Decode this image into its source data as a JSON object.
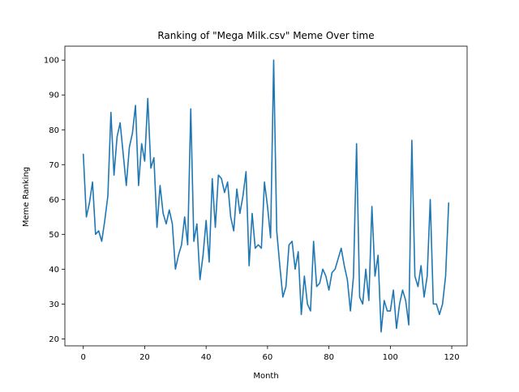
{
  "chart_data": {
    "type": "line",
    "title": "Ranking of \"Mega Milk.csv\" Meme Over time",
    "xlabel": "Month",
    "ylabel": "Meme Ranking",
    "xlim": [
      -6,
      125
    ],
    "ylim": [
      18,
      104
    ],
    "xticks": [
      0,
      20,
      40,
      60,
      80,
      100,
      120
    ],
    "yticks": [
      20,
      30,
      40,
      50,
      60,
      70,
      80,
      90,
      100
    ],
    "grid": false,
    "legend": "none",
    "line_color": "#1f77b4",
    "x": [
      0,
      1,
      2,
      3,
      4,
      5,
      6,
      7,
      8,
      9,
      10,
      11,
      12,
      13,
      14,
      15,
      16,
      17,
      18,
      19,
      20,
      21,
      22,
      23,
      24,
      25,
      26,
      27,
      28,
      29,
      30,
      31,
      32,
      33,
      34,
      35,
      36,
      37,
      38,
      39,
      40,
      41,
      42,
      43,
      44,
      45,
      46,
      47,
      48,
      49,
      50,
      51,
      52,
      53,
      54,
      55,
      56,
      57,
      58,
      59,
      60,
      61,
      62,
      63,
      64,
      65,
      66,
      67,
      68,
      69,
      70,
      71,
      72,
      73,
      74,
      75,
      76,
      77,
      78,
      79,
      80,
      81,
      82,
      83,
      84,
      85,
      86,
      87,
      88,
      89,
      90,
      91,
      92,
      93,
      94,
      95,
      96,
      97,
      98,
      99,
      100,
      101,
      102,
      103,
      104,
      105,
      106,
      107,
      108,
      109,
      110,
      111,
      112,
      113,
      114,
      115,
      116,
      117,
      118,
      119
    ],
    "series": [
      {
        "values": [
          73,
          55,
          59,
          65,
          50,
          51,
          48,
          54,
          61,
          85,
          67,
          78,
          82,
          73,
          64,
          75,
          79,
          87,
          64,
          76,
          71,
          89,
          69,
          72,
          52,
          64,
          56,
          53,
          57,
          53,
          40,
          44,
          47,
          55,
          47,
          86,
          48,
          53,
          37,
          44,
          54,
          42,
          66,
          52,
          67,
          66,
          62,
          65,
          55,
          51,
          63,
          56,
          61,
          68,
          41,
          56,
          46,
          47,
          46,
          65,
          58,
          49,
          100,
          51,
          41,
          32,
          35,
          47,
          48,
          40,
          45,
          27,
          38,
          30,
          28,
          48,
          35,
          36,
          40,
          38,
          34,
          39,
          40,
          43,
          46,
          41,
          37,
          28,
          38,
          76,
          32,
          30,
          40,
          31,
          58,
          38,
          44,
          22,
          31,
          28,
          28,
          34,
          23,
          30,
          34,
          31,
          24,
          77,
          38,
          35,
          41,
          32,
          38,
          60,
          30,
          30,
          27,
          30,
          38,
          59
        ]
      }
    ]
  }
}
